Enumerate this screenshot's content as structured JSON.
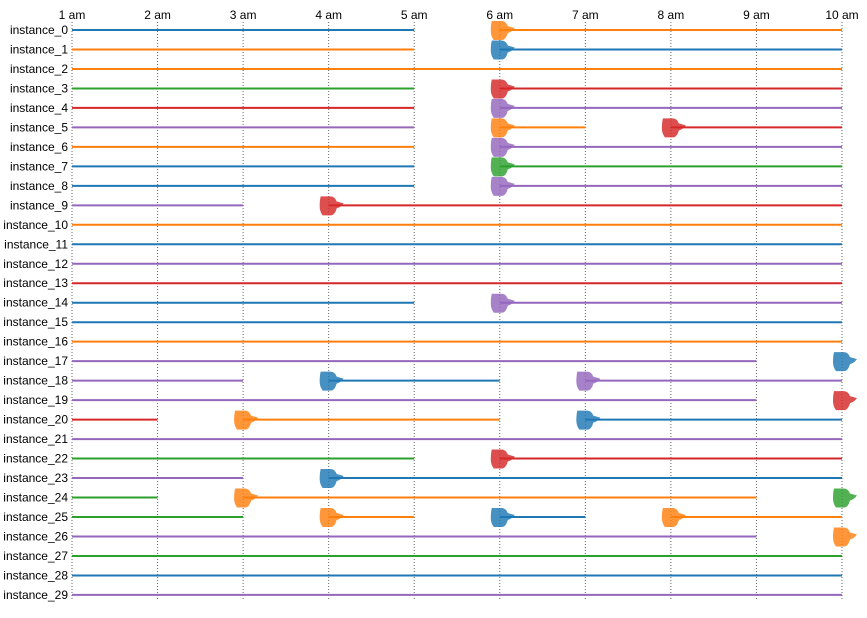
{
  "chart_data": {
    "type": "timeline",
    "x_ticks": [
      "1 am",
      "2 am",
      "3 am",
      "4 am",
      "5 am",
      "6 am",
      "7 am",
      "8 am",
      "9 am",
      "10 am"
    ],
    "xlim": [
      "1 am",
      "10 am"
    ],
    "grid": "vertical-dotted",
    "colors": {
      "blue": "#1f77b4",
      "orange": "#ff7f0e",
      "green": "#2ca02c",
      "red": "#d62728",
      "purple": "#9467bd"
    },
    "instances": [
      {
        "name": "instance_0",
        "segments": [
          {
            "start": "1 am",
            "end": "5 am",
            "color": "blue"
          },
          {
            "start": "6 am",
            "end": "10 am",
            "color": "orange"
          }
        ]
      },
      {
        "name": "instance_1",
        "segments": [
          {
            "start": "1 am",
            "end": "5 am",
            "color": "orange"
          },
          {
            "start": "6 am",
            "end": "10 am",
            "color": "blue"
          }
        ]
      },
      {
        "name": "instance_2",
        "segments": [
          {
            "start": "1 am",
            "end": "10 am",
            "color": "orange"
          }
        ]
      },
      {
        "name": "instance_3",
        "segments": [
          {
            "start": "1 am",
            "end": "5 am",
            "color": "green"
          },
          {
            "start": "6 am",
            "end": "10 am",
            "color": "red"
          }
        ]
      },
      {
        "name": "instance_4",
        "segments": [
          {
            "start": "1 am",
            "end": "5 am",
            "color": "red"
          },
          {
            "start": "6 am",
            "end": "10 am",
            "color": "purple"
          }
        ]
      },
      {
        "name": "instance_5",
        "segments": [
          {
            "start": "1 am",
            "end": "5 am",
            "color": "purple"
          },
          {
            "start": "6 am",
            "end": "7 am",
            "color": "orange"
          },
          {
            "start": "8 am",
            "end": "10 am",
            "color": "red"
          }
        ]
      },
      {
        "name": "instance_6",
        "segments": [
          {
            "start": "1 am",
            "end": "5 am",
            "color": "orange"
          },
          {
            "start": "6 am",
            "end": "10 am",
            "color": "purple"
          }
        ]
      },
      {
        "name": "instance_7",
        "segments": [
          {
            "start": "1 am",
            "end": "5 am",
            "color": "blue"
          },
          {
            "start": "6 am",
            "end": "10 am",
            "color": "green"
          }
        ]
      },
      {
        "name": "instance_8",
        "segments": [
          {
            "start": "1 am",
            "end": "5 am",
            "color": "blue"
          },
          {
            "start": "6 am",
            "end": "10 am",
            "color": "purple"
          }
        ]
      },
      {
        "name": "instance_9",
        "segments": [
          {
            "start": "1 am",
            "end": "3 am",
            "color": "purple"
          },
          {
            "start": "4 am",
            "end": "10 am",
            "color": "red"
          }
        ]
      },
      {
        "name": "instance_10",
        "segments": [
          {
            "start": "1 am",
            "end": "10 am",
            "color": "orange"
          }
        ]
      },
      {
        "name": "instance_11",
        "segments": [
          {
            "start": "1 am",
            "end": "10 am",
            "color": "blue"
          }
        ]
      },
      {
        "name": "instance_12",
        "segments": [
          {
            "start": "1 am",
            "end": "10 am",
            "color": "purple"
          }
        ]
      },
      {
        "name": "instance_13",
        "segments": [
          {
            "start": "1 am",
            "end": "10 am",
            "color": "red"
          }
        ]
      },
      {
        "name": "instance_14",
        "segments": [
          {
            "start": "1 am",
            "end": "5 am",
            "color": "blue"
          },
          {
            "start": "6 am",
            "end": "10 am",
            "color": "purple"
          }
        ]
      },
      {
        "name": "instance_15",
        "segments": [
          {
            "start": "1 am",
            "end": "10 am",
            "color": "blue"
          }
        ]
      },
      {
        "name": "instance_16",
        "segments": [
          {
            "start": "1 am",
            "end": "10 am",
            "color": "orange"
          }
        ]
      },
      {
        "name": "instance_17",
        "segments": [
          {
            "start": "1 am",
            "end": "9 am",
            "color": "purple"
          },
          {
            "start": "10 am",
            "end": "10 am",
            "color": "blue"
          }
        ]
      },
      {
        "name": "instance_18",
        "segments": [
          {
            "start": "1 am",
            "end": "3 am",
            "color": "purple"
          },
          {
            "start": "4 am",
            "end": "6 am",
            "color": "blue"
          },
          {
            "start": "7 am",
            "end": "10 am",
            "color": "purple"
          }
        ]
      },
      {
        "name": "instance_19",
        "segments": [
          {
            "start": "1 am",
            "end": "9 am",
            "color": "purple"
          },
          {
            "start": "10 am",
            "end": "10 am",
            "color": "red"
          }
        ]
      },
      {
        "name": "instance_20",
        "segments": [
          {
            "start": "1 am",
            "end": "2 am",
            "color": "red"
          },
          {
            "start": "3 am",
            "end": "6 am",
            "color": "orange"
          },
          {
            "start": "7 am",
            "end": "10 am",
            "color": "blue"
          }
        ]
      },
      {
        "name": "instance_21",
        "segments": [
          {
            "start": "1 am",
            "end": "10 am",
            "color": "purple"
          }
        ]
      },
      {
        "name": "instance_22",
        "segments": [
          {
            "start": "1 am",
            "end": "5 am",
            "color": "green"
          },
          {
            "start": "6 am",
            "end": "10 am",
            "color": "red"
          }
        ]
      },
      {
        "name": "instance_23",
        "segments": [
          {
            "start": "1 am",
            "end": "3 am",
            "color": "purple"
          },
          {
            "start": "4 am",
            "end": "10 am",
            "color": "blue"
          }
        ]
      },
      {
        "name": "instance_24",
        "segments": [
          {
            "start": "1 am",
            "end": "2 am",
            "color": "green"
          },
          {
            "start": "3 am",
            "end": "9 am",
            "color": "orange"
          },
          {
            "start": "10 am",
            "end": "10 am",
            "color": "green"
          }
        ]
      },
      {
        "name": "instance_25",
        "segments": [
          {
            "start": "1 am",
            "end": "3 am",
            "color": "green"
          },
          {
            "start": "4 am",
            "end": "5 am",
            "color": "orange"
          },
          {
            "start": "6 am",
            "end": "7 am",
            "color": "blue"
          },
          {
            "start": "8 am",
            "end": "10 am",
            "color": "orange"
          }
        ]
      },
      {
        "name": "instance_26",
        "segments": [
          {
            "start": "1 am",
            "end": "9 am",
            "color": "purple"
          },
          {
            "start": "10 am",
            "end": "10 am",
            "color": "orange"
          }
        ]
      },
      {
        "name": "instance_27",
        "segments": [
          {
            "start": "1 am",
            "end": "10 am",
            "color": "green"
          }
        ]
      },
      {
        "name": "instance_28",
        "segments": [
          {
            "start": "1 am",
            "end": "10 am",
            "color": "blue"
          }
        ]
      },
      {
        "name": "instance_29",
        "segments": [
          {
            "start": "1 am",
            "end": "10 am",
            "color": "purple"
          }
        ]
      }
    ]
  }
}
